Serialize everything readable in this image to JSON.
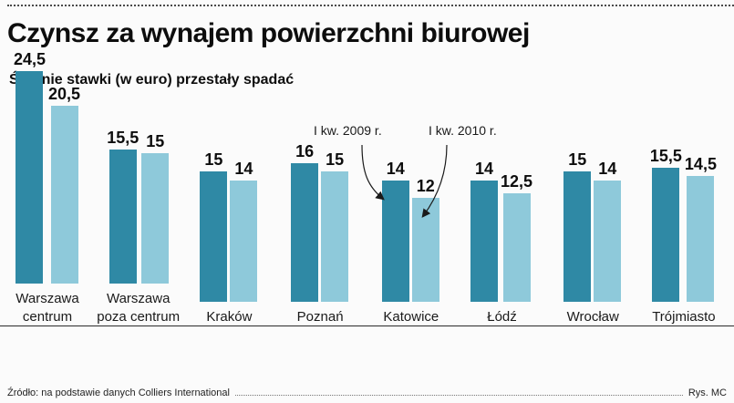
{
  "header": {
    "title": "Czynsz za wynajem powierzchni biurowej",
    "subtitle": "Średnie stawki (w euro) przestały spadać"
  },
  "chart_data": {
    "type": "bar",
    "title": "Czynsz za wynajem powierzchni biurowej",
    "subtitle": "Średnie stawki (w euro) przestały spadać",
    "categories": [
      "Warszawa\ncentrum",
      "Warszawa\npoza centrum",
      "Kraków",
      "Poznań",
      "Katowice",
      "Łódź",
      "Wrocław",
      "Trójmiasto"
    ],
    "series": [
      {
        "name": "I kw. 2009 r.",
        "color": "#2f89a5",
        "values": [
          24.5,
          15.5,
          15,
          16,
          14,
          14,
          15,
          15.5
        ],
        "labels": [
          "24,5",
          "15,5",
          "15",
          "16",
          "14",
          "14",
          "15",
          "15,5"
        ]
      },
      {
        "name": "I kw. 2010 r.",
        "color": "#8ec9da",
        "values": [
          20.5,
          15,
          14,
          15,
          12,
          12.5,
          14,
          14.5
        ],
        "labels": [
          "20,5",
          "15",
          "14",
          "15",
          "12",
          "12,5",
          "14",
          "14,5"
        ]
      }
    ],
    "ylim": [
      0,
      25
    ],
    "grid": false,
    "legend_position": "inline-annotations-pointing-to-katowice",
    "annotations": [
      {
        "text": "I kw. 2009 r.",
        "points_to": "Katowice 2009 bar"
      },
      {
        "text": "I kw. 2010 r.",
        "points_to": "Katowice 2010 bar"
      }
    ]
  },
  "footer": {
    "source": "Źródło: na podstawie danych Colliers International",
    "credit": "Rys. MC"
  }
}
